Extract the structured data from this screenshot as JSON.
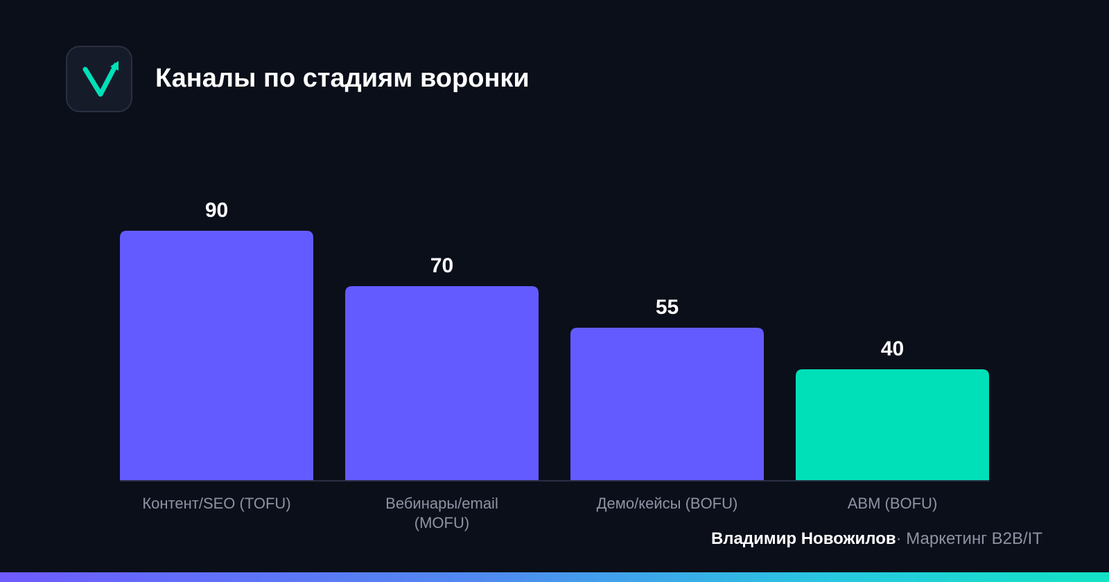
{
  "header": {
    "title": "Каналы по стадиям воронки",
    "logo_icon": "checkmark-arrow-icon"
  },
  "colors": {
    "background": "#0b0f1a",
    "bar_primary": "#635bff",
    "bar_highlight": "#00e0b8",
    "axis_line": "#2a3042",
    "label_muted": "#8e93a3"
  },
  "chart_data": {
    "type": "bar",
    "categories": [
      [
        "Контент/SEO (TOFU)"
      ],
      [
        "Вебинары/email",
        "(MOFU)"
      ],
      [
        "Демо/кейсы (BOFU)"
      ],
      [
        "ABM (BOFU)"
      ]
    ],
    "values": [
      90,
      70,
      55,
      40
    ],
    "highlight_index": 3,
    "title": "",
    "xlabel": "",
    "ylabel": "",
    "ylim": [
      0,
      100
    ],
    "grid": false,
    "legend": "none"
  },
  "footer": {
    "author": "Владимир Новожилов",
    "separator": "·",
    "tagline": "Маркетинг B2B/IT"
  }
}
